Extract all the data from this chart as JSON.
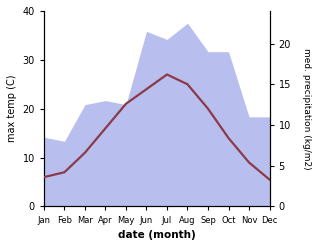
{
  "months": [
    "Jan",
    "Feb",
    "Mar",
    "Apr",
    "May",
    "Jun",
    "Jul",
    "Aug",
    "Sep",
    "Oct",
    "Nov",
    "Dec"
  ],
  "max_temp": [
    6.0,
    7.0,
    11.0,
    16.0,
    21.0,
    24.0,
    27.0,
    25.0,
    20.0,
    14.0,
    9.0,
    5.5
  ],
  "precipitation": [
    8.5,
    8.0,
    12.5,
    13.0,
    12.5,
    21.5,
    20.5,
    22.5,
    19.0,
    19.0,
    11.0,
    11.0
  ],
  "temp_color": "#8B3A4A",
  "precip_fill_color": "#b8bfee",
  "precip_fill_alpha": 1.0,
  "temp_ylim": [
    0,
    40
  ],
  "precip_ylim": [
    0,
    24
  ],
  "precip_yticks": [
    0,
    5,
    10,
    15,
    20
  ],
  "temp_yticks": [
    0,
    10,
    20,
    30,
    40
  ],
  "xlabel": "date (month)",
  "ylabel_left": "max temp (C)",
  "ylabel_right": "med. precipitation (kg/m2)",
  "bg_color": "#ffffff",
  "line_width": 1.6
}
